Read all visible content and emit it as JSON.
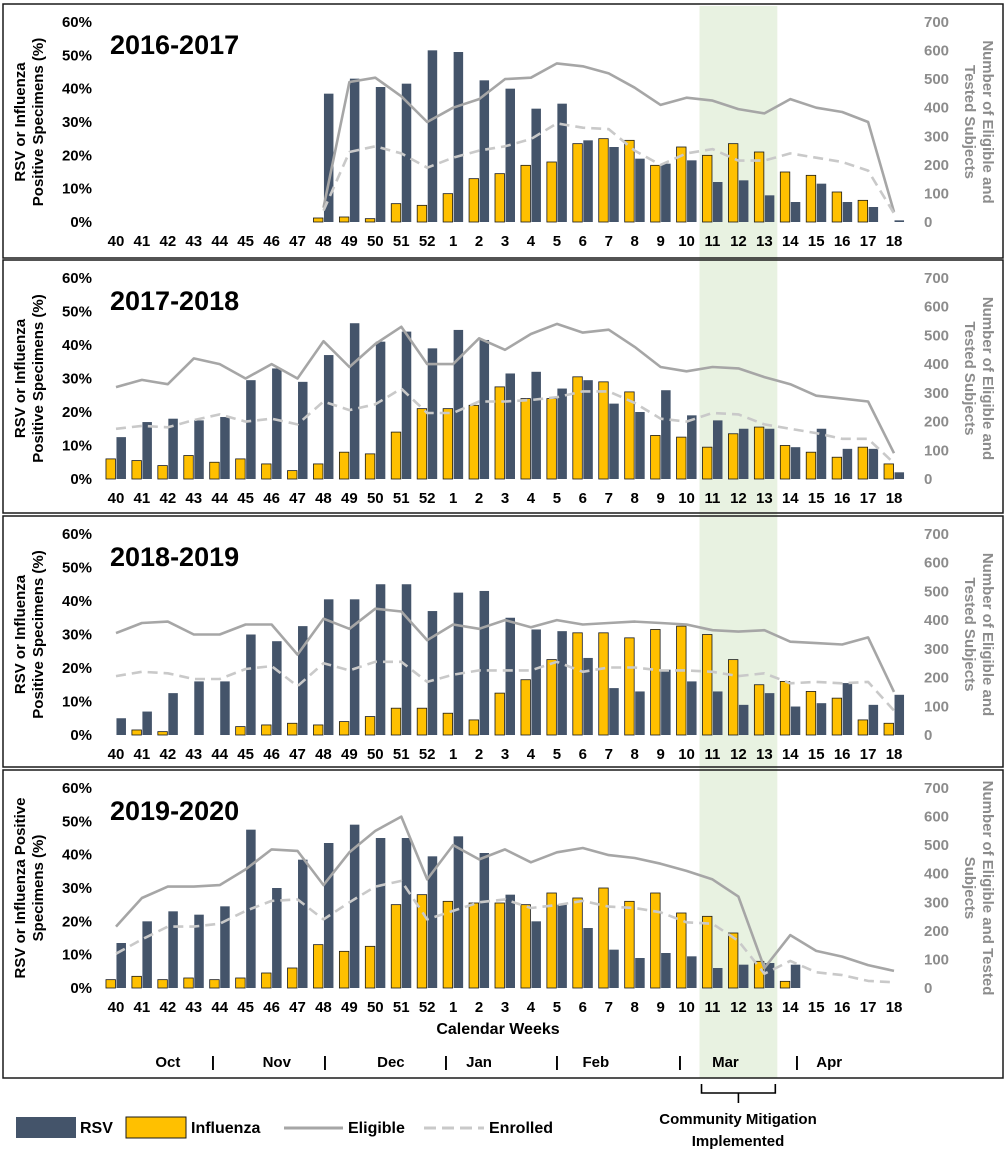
{
  "chart_data": {
    "type": "bar",
    "categories": [
      "40",
      "41",
      "42",
      "43",
      "44",
      "45",
      "46",
      "47",
      "48",
      "49",
      "50",
      "51",
      "52",
      "1",
      "2",
      "3",
      "4",
      "5",
      "6",
      "7",
      "8",
      "9",
      "10",
      "11",
      "12",
      "13",
      "14",
      "15",
      "16",
      "17",
      "18"
    ],
    "y_left_ticks": [
      "0%",
      "10%",
      "20%",
      "30%",
      "40%",
      "50%",
      "60%"
    ],
    "y_right_ticks": [
      "0",
      "100",
      "200",
      "300",
      "400",
      "500",
      "600",
      "700"
    ],
    "ylim_left": [
      0,
      60
    ],
    "ylim_right": [
      0,
      700
    ],
    "xlabel": "Calendar Weeks",
    "months": [
      {
        "label": "Oct",
        "center": 42.0
      },
      {
        "label": "Nov",
        "center": 46.2
      },
      {
        "label": "Dec",
        "center": 50.6
      },
      {
        "label": "Jan",
        "center": 2.0
      },
      {
        "label": "Feb",
        "center": 6.5
      },
      {
        "label": "Mar",
        "center": 11.5
      },
      {
        "label": "Apr",
        "center": 15.5
      }
    ],
    "separators": [
      "|",
      "|",
      "|",
      "|",
      "|",
      "|"
    ],
    "shaded_weeks": [
      "11",
      "13"
    ],
    "annotation": [
      "Community  Mitigation",
      "Implemented"
    ],
    "legend": [
      {
        "name": "RSV",
        "kind": "bar",
        "color": "#44546a"
      },
      {
        "name": "Influenza",
        "kind": "bar",
        "color": "#ffc000"
      },
      {
        "name": "Eligible",
        "kind": "line",
        "color": "#a6a6a6"
      },
      {
        "name": "Enrolled",
        "kind": "dash",
        "color": "#c9c9c9"
      }
    ],
    "panels": [
      {
        "title": "2016-2017",
        "ylabel_left": [
          "RSV or Influenza",
          "Positive Specimens (%)"
        ],
        "ylabel_right": [
          "Number of Eligible and",
          "Tested Subjects"
        ],
        "rsv": [
          null,
          null,
          null,
          null,
          null,
          null,
          null,
          null,
          38.5,
          43,
          40.5,
          41.5,
          51.5,
          51,
          42.5,
          40,
          34,
          35.5,
          24.5,
          22.5,
          19,
          17.5,
          18.5,
          12,
          12.5,
          8,
          6,
          11.5,
          6,
          4.5,
          0.5
        ],
        "influenza": [
          null,
          null,
          null,
          null,
          null,
          null,
          null,
          null,
          1.2,
          1.5,
          1,
          5.5,
          5,
          8.5,
          13,
          14.5,
          17,
          18,
          23.5,
          25,
          24.5,
          17,
          22.5,
          20,
          23.5,
          21,
          15,
          14,
          9,
          6.5,
          null
        ],
        "eligible": [
          null,
          null,
          null,
          null,
          null,
          null,
          null,
          null,
          50,
          490,
          505,
          440,
          350,
          400,
          430,
          500,
          505,
          555,
          545,
          520,
          470,
          410,
          435,
          425,
          395,
          380,
          430,
          400,
          385,
          350,
          35
        ],
        "enrolled": [
          null,
          null,
          null,
          null,
          null,
          null,
          null,
          null,
          40,
          245,
          265,
          240,
          190,
          225,
          250,
          265,
          290,
          345,
          330,
          325,
          250,
          200,
          240,
          255,
          215,
          215,
          240,
          225,
          210,
          180,
          30
        ]
      },
      {
        "title": "2017-2018",
        "ylabel_left": [
          "RSV or Influenza",
          "Positive Specimens (%)"
        ],
        "ylabel_right": [
          "Number of Eligible and",
          "Tested Subjects"
        ],
        "rsv": [
          12.5,
          17,
          18,
          17.5,
          18.5,
          29.5,
          33,
          29,
          37,
          46.5,
          41,
          44,
          39,
          44.5,
          41.5,
          31.5,
          32,
          27,
          29.5,
          22.5,
          20,
          26.5,
          19,
          17.5,
          15,
          15,
          9.5,
          15,
          9,
          9,
          2
        ],
        "influenza": [
          6,
          5.5,
          4,
          7,
          5,
          6,
          4.5,
          2.5,
          4.5,
          8,
          7.5,
          14,
          21,
          21,
          22,
          27.5,
          24,
          24,
          30.5,
          29,
          26,
          13,
          12.5,
          9.5,
          13.5,
          15.5,
          10,
          8,
          6.5,
          9.5,
          4.5
        ],
        "eligible": [
          320,
          345,
          330,
          420,
          400,
          350,
          400,
          350,
          480,
          390,
          470,
          530,
          400,
          400,
          490,
          450,
          505,
          540,
          510,
          520,
          460,
          390,
          375,
          390,
          385,
          355,
          330,
          290,
          280,
          270,
          90
        ],
        "enrolled": [
          175,
          185,
          180,
          205,
          225,
          200,
          210,
          190,
          270,
          240,
          260,
          315,
          230,
          230,
          270,
          270,
          275,
          285,
          305,
          305,
          265,
          210,
          200,
          230,
          225,
          190,
          175,
          160,
          140,
          140,
          55
        ]
      },
      {
        "title": "2018-2019",
        "ylabel_left": [
          "RSV or Influenza",
          "Positive Specimens (%)"
        ],
        "ylabel_right": [
          "Number of Eligible and",
          "Tested Subjects"
        ],
        "rsv": [
          5,
          7,
          12.5,
          16,
          16,
          30,
          28,
          32.5,
          40.5,
          40.5,
          45,
          45,
          37,
          42.5,
          43,
          35,
          31.5,
          31,
          23,
          14,
          13,
          19.5,
          16,
          13,
          9,
          12.5,
          8.5,
          9.5,
          15.5,
          9,
          12
        ],
        "influenza": [
          null,
          1.5,
          1,
          null,
          null,
          2.5,
          3,
          3.5,
          3,
          4,
          5.5,
          8,
          8,
          6.5,
          4.5,
          12.5,
          16.5,
          22.5,
          30.5,
          30.5,
          29,
          31.5,
          32.5,
          30,
          22.5,
          15,
          16,
          13,
          11,
          4.5,
          3.5
        ],
        "eligible": [
          355,
          390,
          395,
          350,
          350,
          385,
          385,
          280,
          405,
          370,
          440,
          430,
          330,
          385,
          370,
          400,
          375,
          400,
          385,
          390,
          395,
          390,
          385,
          365,
          360,
          365,
          325,
          320,
          315,
          340,
          150
        ],
        "enrolled": [
          205,
          220,
          215,
          195,
          195,
          230,
          240,
          170,
          250,
          225,
          255,
          255,
          185,
          210,
          225,
          225,
          225,
          255,
          220,
          235,
          235,
          225,
          225,
          220,
          205,
          215,
          180,
          185,
          180,
          185,
          85
        ]
      },
      {
        "title": "2019-2020",
        "ylabel_left": [
          "RSV or Influenza Positive",
          "Specimens (%)"
        ],
        "ylabel_right": [
          "Number of Eligible and Tested",
          "Subjects"
        ],
        "rsv": [
          13.5,
          20,
          23,
          22,
          24.5,
          47.5,
          30,
          38.5,
          43.5,
          49,
          45,
          45,
          39.5,
          45.5,
          40.5,
          28,
          20,
          25,
          18,
          11.5,
          9,
          10.5,
          9.5,
          6,
          7,
          7.5,
          7,
          null,
          null,
          null,
          null
        ],
        "influenza": [
          2.5,
          3.5,
          2.5,
          3,
          2.5,
          3,
          4.5,
          6,
          13,
          11,
          12.5,
          25,
          28,
          26,
          25.5,
          25.5,
          25,
          28.5,
          27,
          30,
          26,
          28.5,
          22.5,
          21.5,
          16.5,
          8,
          2,
          null,
          null,
          null,
          null
        ],
        "eligible": [
          215,
          315,
          355,
          355,
          360,
          415,
          485,
          480,
          360,
          475,
          550,
          600,
          380,
          500,
          450,
          485,
          440,
          475,
          490,
          465,
          455,
          435,
          410,
          380,
          320,
          70,
          185,
          130,
          110,
          80,
          60
        ],
        "enrolled": [
          120,
          170,
          215,
          215,
          225,
          270,
          305,
          310,
          240,
          300,
          355,
          375,
          240,
          270,
          300,
          310,
          280,
          290,
          305,
          285,
          280,
          265,
          230,
          225,
          165,
          50,
          95,
          55,
          45,
          25,
          20
        ]
      }
    ]
  }
}
